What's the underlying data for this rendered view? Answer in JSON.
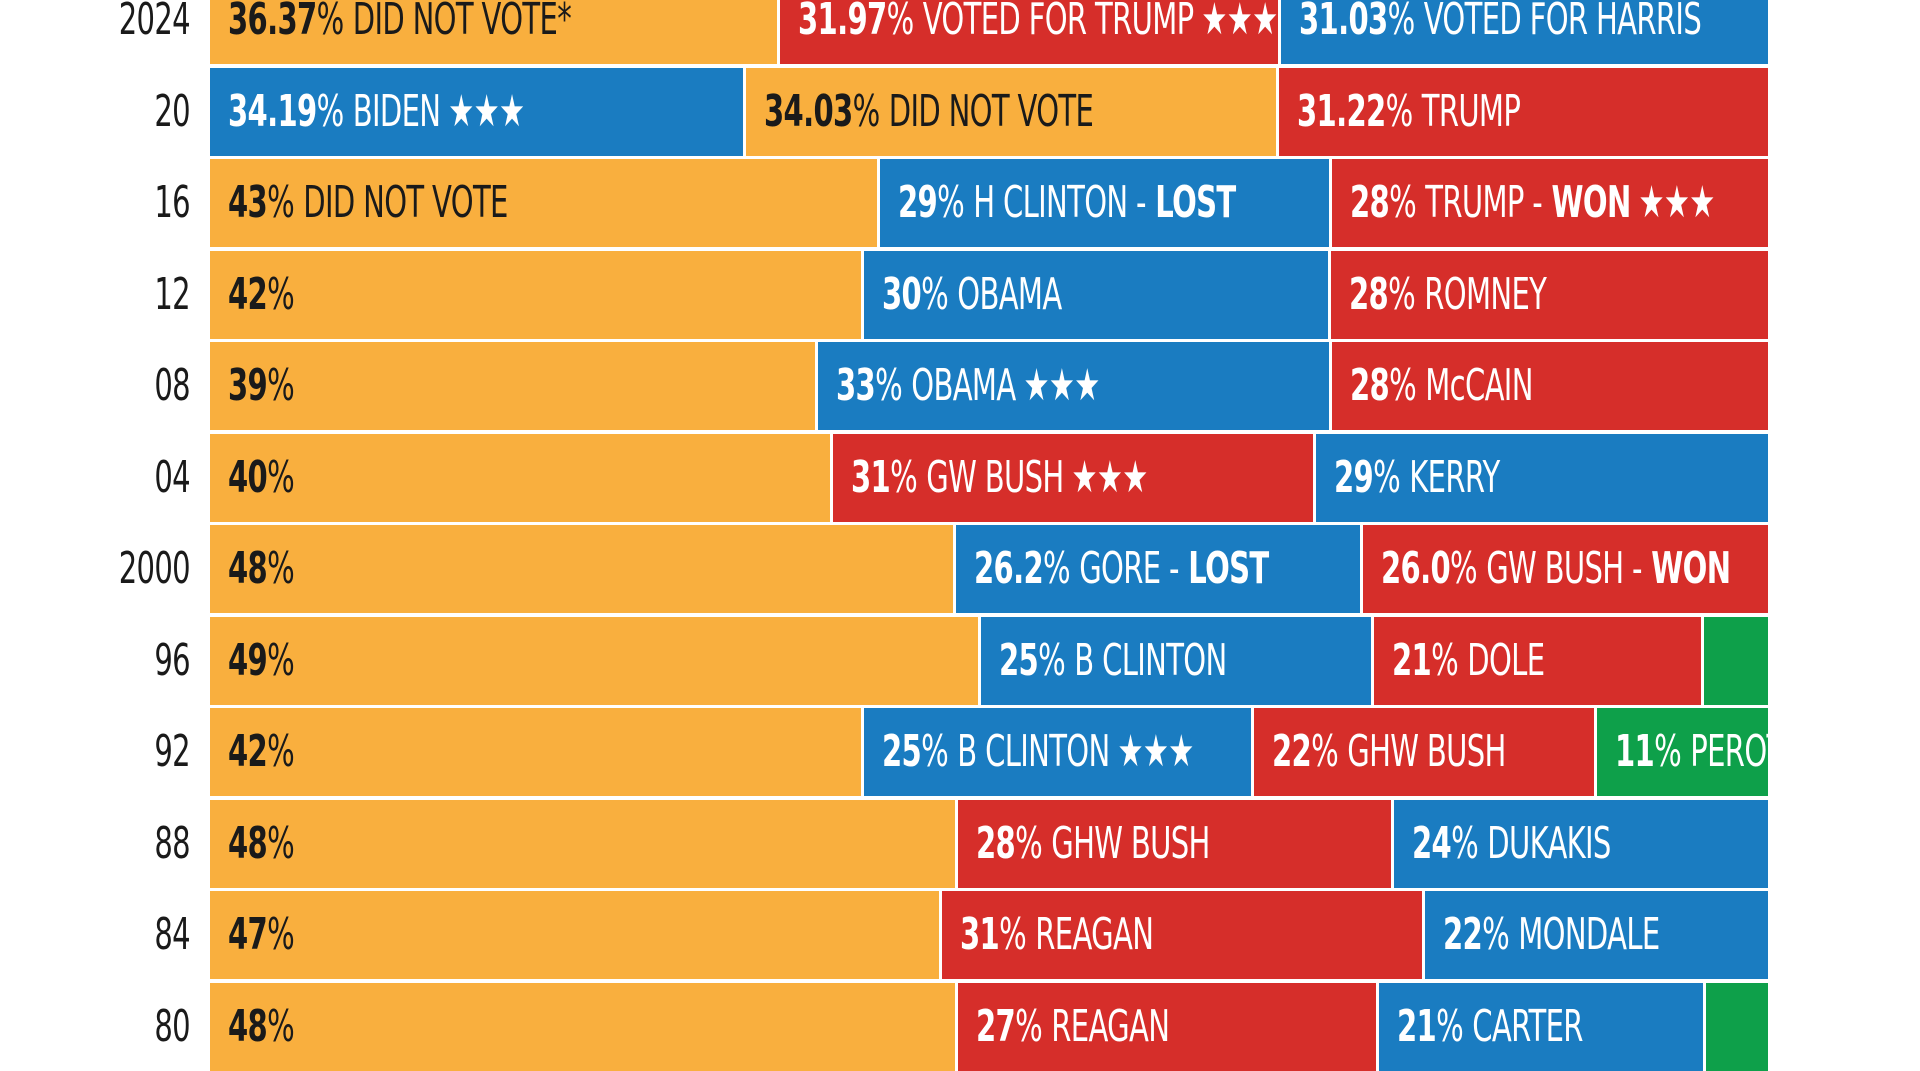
{
  "colors": {
    "did_not_vote": "#F9AF3E",
    "democrat": "#1A7CC1",
    "republican": "#D62E2A",
    "independent": "#0EA04A",
    "dark_text": "#1a1a1a",
    "light_text": "#ffffff"
  },
  "chart_data": {
    "type": "bar",
    "orientation": "horizontal-stacked-100",
    "title": "",
    "xlabel": "",
    "ylabel": "",
    "legend": "none",
    "grid": false,
    "rows": [
      {
        "year": "2024",
        "segments": [
          {
            "party": "did_not_vote",
            "value": 36.37,
            "num": "36.37",
            "label": "DID NOT VOTE*",
            "stars": false
          },
          {
            "party": "republican",
            "value": 31.97,
            "num": "31.97",
            "label": "VOTED FOR TRUMP",
            "stars": true
          },
          {
            "party": "democrat",
            "value": 31.03,
            "num": "31.03",
            "label": "VOTED FOR HARRIS",
            "stars": false
          }
        ]
      },
      {
        "year": "20",
        "segments": [
          {
            "party": "democrat",
            "value": 34.19,
            "num": "34.19",
            "label": "BIDEN",
            "stars": true
          },
          {
            "party": "did_not_vote",
            "value": 34.03,
            "num": "34.03",
            "label": "DID NOT VOTE",
            "stars": false
          },
          {
            "party": "republican",
            "value": 31.22,
            "num": "31.22",
            "label": "TRUMP",
            "stars": false
          }
        ]
      },
      {
        "year": "16",
        "segments": [
          {
            "party": "did_not_vote",
            "value": 43,
            "num": "43",
            "label": "DID NOT VOTE",
            "stars": false
          },
          {
            "party": "democrat",
            "value": 29,
            "num": "29",
            "label": "H CLINTON -",
            "bold_suffix": "LOST",
            "stars": false
          },
          {
            "party": "republican",
            "value": 28,
            "num": "28",
            "label": "TRUMP -",
            "bold_suffix": "WON",
            "stars": true
          }
        ]
      },
      {
        "year": "12",
        "segments": [
          {
            "party": "did_not_vote",
            "value": 42,
            "num": "42",
            "label": "",
            "stars": false
          },
          {
            "party": "democrat",
            "value": 30,
            "num": "30",
            "label": "OBAMA",
            "stars": false
          },
          {
            "party": "republican",
            "value": 28,
            "num": "28",
            "label": "ROMNEY",
            "stars": false
          }
        ]
      },
      {
        "year": "08",
        "segments": [
          {
            "party": "did_not_vote",
            "value": 39,
            "num": "39",
            "label": "",
            "stars": false
          },
          {
            "party": "democrat",
            "value": 33,
            "num": "33",
            "label": "OBAMA",
            "stars": true
          },
          {
            "party": "republican",
            "value": 28,
            "num": "28",
            "label": "McCAIN",
            "stars": false
          }
        ]
      },
      {
        "year": "04",
        "segments": [
          {
            "party": "did_not_vote",
            "value": 40,
            "num": "40",
            "label": "",
            "stars": false
          },
          {
            "party": "republican",
            "value": 31,
            "num": "31",
            "label": "GW BUSH",
            "stars": true
          },
          {
            "party": "democrat",
            "value": 29,
            "num": "29",
            "label": "KERRY",
            "stars": false
          }
        ]
      },
      {
        "year": "2000",
        "segments": [
          {
            "party": "did_not_vote",
            "value": 48,
            "num": "48",
            "label": "",
            "stars": false
          },
          {
            "party": "democrat",
            "value": 26.2,
            "num": "26.2",
            "label": "GORE -",
            "bold_suffix": "LOST",
            "stars": false
          },
          {
            "party": "republican",
            "value": 26.0,
            "num": "26.0",
            "label": "GW BUSH -",
            "bold_suffix": "WON",
            "stars": false
          }
        ]
      },
      {
        "year": "96",
        "segments": [
          {
            "party": "did_not_vote",
            "value": 49,
            "num": "49",
            "label": "",
            "stars": false
          },
          {
            "party": "democrat",
            "value": 25,
            "num": "25",
            "label": "B CLINTON",
            "stars": false
          },
          {
            "party": "republican",
            "value": 21,
            "num": "21",
            "label": "DOLE",
            "stars": false
          },
          {
            "party": "independent",
            "value": 4,
            "num": "",
            "label": "",
            "stars": false
          }
        ]
      },
      {
        "year": "92",
        "segments": [
          {
            "party": "did_not_vote",
            "value": 42,
            "num": "42",
            "label": "",
            "stars": false
          },
          {
            "party": "democrat",
            "value": 25,
            "num": "25",
            "label": "B CLINTON",
            "stars": true
          },
          {
            "party": "republican",
            "value": 22,
            "num": "22",
            "label": "GHW BUSH",
            "stars": false
          },
          {
            "party": "independent",
            "value": 11,
            "num": "11",
            "label": "PEROT",
            "stars": false
          }
        ]
      },
      {
        "year": "88",
        "segments": [
          {
            "party": "did_not_vote",
            "value": 48,
            "num": "48",
            "label": "",
            "stars": false
          },
          {
            "party": "republican",
            "value": 28,
            "num": "28",
            "label": "GHW BUSH",
            "stars": false
          },
          {
            "party": "democrat",
            "value": 24,
            "num": "24",
            "label": "DUKAKIS",
            "stars": false
          }
        ]
      },
      {
        "year": "84",
        "segments": [
          {
            "party": "did_not_vote",
            "value": 47,
            "num": "47",
            "label": "",
            "stars": false
          },
          {
            "party": "republican",
            "value": 31,
            "num": "31",
            "label": "REAGAN",
            "stars": false
          },
          {
            "party": "democrat",
            "value": 22,
            "num": "22",
            "label": "MONDALE",
            "stars": false
          }
        ]
      },
      {
        "year": "80",
        "segments": [
          {
            "party": "did_not_vote",
            "value": 48,
            "num": "48",
            "label": "",
            "stars": false
          },
          {
            "party": "republican",
            "value": 27,
            "num": "27",
            "label": "REAGAN",
            "stars": false
          },
          {
            "party": "democrat",
            "value": 21,
            "num": "21",
            "label": "CARTER",
            "stars": false
          },
          {
            "party": "independent",
            "value": 4,
            "num": "",
            "label": "",
            "stars": false
          }
        ]
      }
    ]
  }
}
